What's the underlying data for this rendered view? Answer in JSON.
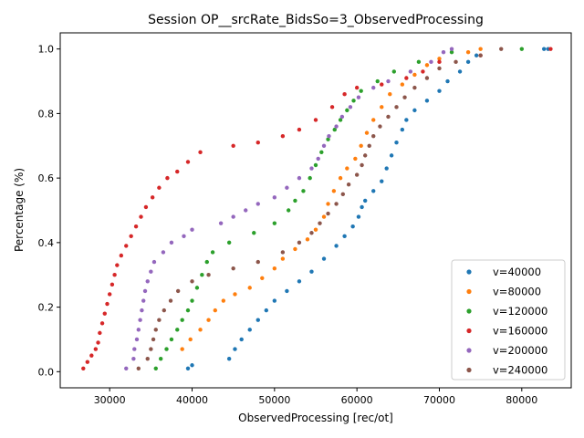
{
  "chart_data": {
    "type": "scatter",
    "title": "Session OP__srcRate_BidsSo=3_ObservedProcessing",
    "xlabel": "ObservedProcessing [rec/ot]",
    "ylabel": "Percentage (%)",
    "xlim": [
      24000,
      86000
    ],
    "ylim": [
      -0.05,
      1.05
    ],
    "xticks": [
      30000,
      40000,
      50000,
      60000,
      70000,
      80000
    ],
    "yticks": [
      0.0,
      0.2,
      0.4,
      0.6,
      0.8,
      1.0
    ],
    "xtick_labels": [
      "30000",
      "40000",
      "50000",
      "60000",
      "70000",
      "80000"
    ],
    "ytick_labels": [
      "0.0",
      "0.2",
      "0.4",
      "0.6",
      "0.8",
      "1.0"
    ],
    "grid": false,
    "legend_position": "bottom-right",
    "series": [
      {
        "name": "v=40000",
        "color": "#1f77b4",
        "points": [
          [
            39500,
            0.01
          ],
          [
            40000,
            0.02
          ],
          [
            44500,
            0.04
          ],
          [
            45200,
            0.07
          ],
          [
            46000,
            0.1
          ],
          [
            47000,
            0.13
          ],
          [
            48000,
            0.16
          ],
          [
            49000,
            0.19
          ],
          [
            50000,
            0.22
          ],
          [
            51500,
            0.25
          ],
          [
            53000,
            0.28
          ],
          [
            54500,
            0.31
          ],
          [
            56000,
            0.35
          ],
          [
            57500,
            0.39
          ],
          [
            58500,
            0.42
          ],
          [
            59500,
            0.45
          ],
          [
            60200,
            0.48
          ],
          [
            60600,
            0.51
          ],
          [
            61000,
            0.53
          ],
          [
            62000,
            0.56
          ],
          [
            63000,
            0.59
          ],
          [
            63600,
            0.63
          ],
          [
            64200,
            0.67
          ],
          [
            64800,
            0.71
          ],
          [
            65500,
            0.75
          ],
          [
            66000,
            0.78
          ],
          [
            67000,
            0.81
          ],
          [
            68500,
            0.84
          ],
          [
            70000,
            0.87
          ],
          [
            71000,
            0.9
          ],
          [
            72500,
            0.93
          ],
          [
            73500,
            0.96
          ],
          [
            74500,
            0.98
          ],
          [
            82700,
            1.0
          ],
          [
            83200,
            1.0
          ]
        ]
      },
      {
        "name": "v=80000",
        "color": "#ff7f0e",
        "points": [
          [
            38800,
            0.07
          ],
          [
            39800,
            0.1
          ],
          [
            41000,
            0.13
          ],
          [
            42000,
            0.16
          ],
          [
            42800,
            0.19
          ],
          [
            43800,
            0.22
          ],
          [
            45200,
            0.24
          ],
          [
            47000,
            0.26
          ],
          [
            48500,
            0.29
          ],
          [
            50000,
            0.32
          ],
          [
            51000,
            0.35
          ],
          [
            52500,
            0.38
          ],
          [
            54000,
            0.41
          ],
          [
            55000,
            0.44
          ],
          [
            56000,
            0.48
          ],
          [
            56500,
            0.52
          ],
          [
            57200,
            0.56
          ],
          [
            58000,
            0.6
          ],
          [
            58800,
            0.63
          ],
          [
            59800,
            0.66
          ],
          [
            60500,
            0.7
          ],
          [
            61200,
            0.74
          ],
          [
            62000,
            0.78
          ],
          [
            63000,
            0.82
          ],
          [
            64000,
            0.86
          ],
          [
            65500,
            0.89
          ],
          [
            67000,
            0.92
          ],
          [
            68500,
            0.95
          ],
          [
            70000,
            0.97
          ],
          [
            73500,
            0.99
          ],
          [
            75000,
            1.0
          ]
        ]
      },
      {
        "name": "v=120000",
        "color": "#2ca02c",
        "points": [
          [
            35600,
            0.01
          ],
          [
            36200,
            0.04
          ],
          [
            36900,
            0.07
          ],
          [
            37500,
            0.1
          ],
          [
            38200,
            0.13
          ],
          [
            38800,
            0.16
          ],
          [
            39500,
            0.19
          ],
          [
            40000,
            0.22
          ],
          [
            40600,
            0.26
          ],
          [
            41200,
            0.3
          ],
          [
            41800,
            0.34
          ],
          [
            42500,
            0.37
          ],
          [
            44500,
            0.4
          ],
          [
            47500,
            0.43
          ],
          [
            50000,
            0.46
          ],
          [
            51700,
            0.5
          ],
          [
            52500,
            0.53
          ],
          [
            53500,
            0.56
          ],
          [
            54300,
            0.6
          ],
          [
            55000,
            0.64
          ],
          [
            55700,
            0.68
          ],
          [
            56500,
            0.72
          ],
          [
            57300,
            0.75
          ],
          [
            58000,
            0.78
          ],
          [
            58800,
            0.81
          ],
          [
            59600,
            0.84
          ],
          [
            60500,
            0.87
          ],
          [
            62500,
            0.9
          ],
          [
            64500,
            0.93
          ],
          [
            67500,
            0.96
          ],
          [
            71500,
            0.99
          ],
          [
            80000,
            1.0
          ]
        ]
      },
      {
        "name": "v=160000",
        "color": "#d62728",
        "points": [
          [
            26800,
            0.01
          ],
          [
            27300,
            0.03
          ],
          [
            27800,
            0.05
          ],
          [
            28300,
            0.07
          ],
          [
            28600,
            0.09
          ],
          [
            28800,
            0.12
          ],
          [
            29100,
            0.15
          ],
          [
            29400,
            0.18
          ],
          [
            29700,
            0.21
          ],
          [
            30000,
            0.24
          ],
          [
            30300,
            0.27
          ],
          [
            30600,
            0.3
          ],
          [
            30900,
            0.33
          ],
          [
            31400,
            0.36
          ],
          [
            32000,
            0.39
          ],
          [
            32600,
            0.42
          ],
          [
            33200,
            0.45
          ],
          [
            33800,
            0.48
          ],
          [
            34400,
            0.51
          ],
          [
            35200,
            0.54
          ],
          [
            36000,
            0.57
          ],
          [
            37000,
            0.6
          ],
          [
            38200,
            0.62
          ],
          [
            39500,
            0.65
          ],
          [
            41000,
            0.68
          ],
          [
            45000,
            0.7
          ],
          [
            48000,
            0.71
          ],
          [
            51000,
            0.73
          ],
          [
            53000,
            0.75
          ],
          [
            55000,
            0.78
          ],
          [
            57000,
            0.82
          ],
          [
            58500,
            0.86
          ],
          [
            60000,
            0.88
          ],
          [
            63000,
            0.89
          ],
          [
            66000,
            0.91
          ],
          [
            68000,
            0.93
          ],
          [
            70000,
            0.96
          ],
          [
            75000,
            0.98
          ],
          [
            83500,
            1.0
          ]
        ]
      },
      {
        "name": "v=200000",
        "color": "#9467bd",
        "points": [
          [
            32000,
            0.01
          ],
          [
            32900,
            0.04
          ],
          [
            33000,
            0.07
          ],
          [
            33300,
            0.1
          ],
          [
            33500,
            0.13
          ],
          [
            33700,
            0.16
          ],
          [
            33900,
            0.19
          ],
          [
            34100,
            0.22
          ],
          [
            34300,
            0.25
          ],
          [
            34600,
            0.28
          ],
          [
            35000,
            0.31
          ],
          [
            35400,
            0.34
          ],
          [
            36500,
            0.37
          ],
          [
            37500,
            0.4
          ],
          [
            39000,
            0.42
          ],
          [
            40000,
            0.44
          ],
          [
            43500,
            0.46
          ],
          [
            45000,
            0.48
          ],
          [
            46500,
            0.5
          ],
          [
            48000,
            0.52
          ],
          [
            50000,
            0.54
          ],
          [
            51500,
            0.57
          ],
          [
            53000,
            0.6
          ],
          [
            54500,
            0.63
          ],
          [
            55300,
            0.66
          ],
          [
            56000,
            0.7
          ],
          [
            56600,
            0.73
          ],
          [
            57500,
            0.76
          ],
          [
            58200,
            0.79
          ],
          [
            59200,
            0.82
          ],
          [
            60200,
            0.85
          ],
          [
            62000,
            0.88
          ],
          [
            63800,
            0.9
          ],
          [
            66500,
            0.93
          ],
          [
            69000,
            0.96
          ],
          [
            70500,
            0.99
          ],
          [
            71500,
            1.0
          ]
        ]
      },
      {
        "name": "v=240000",
        "color": "#8c564b",
        "points": [
          [
            33500,
            0.01
          ],
          [
            34600,
            0.04
          ],
          [
            35000,
            0.07
          ],
          [
            35300,
            0.1
          ],
          [
            35600,
            0.13
          ],
          [
            36000,
            0.16
          ],
          [
            36600,
            0.19
          ],
          [
            37400,
            0.22
          ],
          [
            38300,
            0.25
          ],
          [
            40000,
            0.28
          ],
          [
            42000,
            0.3
          ],
          [
            45000,
            0.32
          ],
          [
            48000,
            0.34
          ],
          [
            51000,
            0.37
          ],
          [
            53000,
            0.4
          ],
          [
            54500,
            0.43
          ],
          [
            55500,
            0.46
          ],
          [
            56500,
            0.49
          ],
          [
            57500,
            0.52
          ],
          [
            58300,
            0.55
          ],
          [
            59000,
            0.58
          ],
          [
            60000,
            0.61
          ],
          [
            60600,
            0.64
          ],
          [
            61000,
            0.67
          ],
          [
            61500,
            0.7
          ],
          [
            62000,
            0.73
          ],
          [
            62800,
            0.76
          ],
          [
            63800,
            0.79
          ],
          [
            64800,
            0.82
          ],
          [
            65800,
            0.85
          ],
          [
            67000,
            0.88
          ],
          [
            68500,
            0.91
          ],
          [
            70000,
            0.94
          ],
          [
            72000,
            0.96
          ],
          [
            75000,
            0.98
          ],
          [
            77500,
            1.0
          ]
        ]
      }
    ]
  }
}
